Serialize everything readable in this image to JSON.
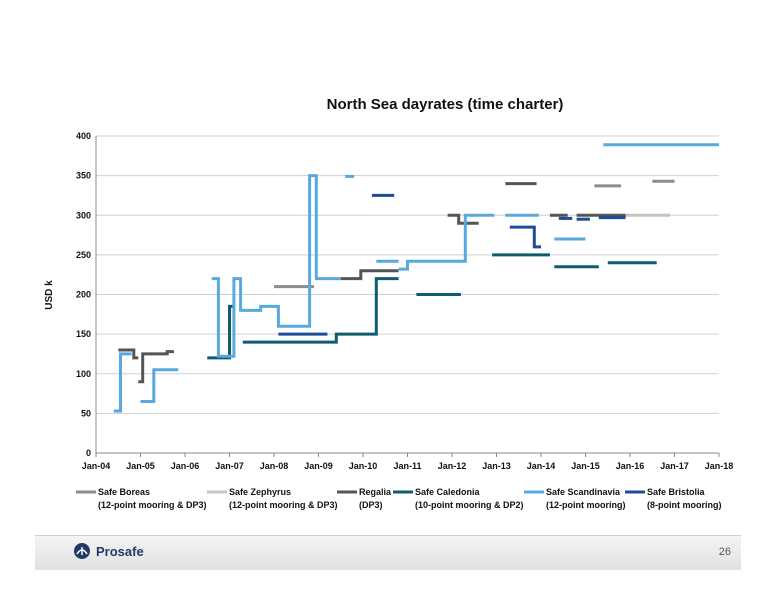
{
  "chart_data": {
    "type": "line",
    "title": "North Sea dayrates (time charter)",
    "ylabel": "USD k",
    "xlabel": "",
    "ylim": [
      0,
      400
    ],
    "yticks": [
      0,
      50,
      100,
      150,
      200,
      250,
      300,
      350,
      400
    ],
    "xlim": [
      2004.0,
      2018.0
    ],
    "xticks": [
      {
        "label": "Jan-04",
        "value": 2004
      },
      {
        "label": "Jan-05",
        "value": 2005
      },
      {
        "label": "Jan-06",
        "value": 2006
      },
      {
        "label": "Jan-07",
        "value": 2007
      },
      {
        "label": "Jan-08",
        "value": 2008
      },
      {
        "label": "Jan-09",
        "value": 2009
      },
      {
        "label": "Jan-10",
        "value": 2010
      },
      {
        "label": "Jan-11",
        "value": 2011
      },
      {
        "label": "Jan-12",
        "value": 2012
      },
      {
        "label": "Jan-13",
        "value": 2013
      },
      {
        "label": "Jan-14",
        "value": 2014
      },
      {
        "label": "Jan-15",
        "value": 2015
      },
      {
        "label": "Jan-16",
        "value": 2016
      },
      {
        "label": "Jan-17",
        "value": 2017
      },
      {
        "label": "Jan-18",
        "value": 2018
      }
    ],
    "grid": "horizontal",
    "legend_position": "bottom",
    "series": [
      {
        "name": "Safe Boreas",
        "note": "(12-point mooring & DP3)",
        "color": "#8c8c8c",
        "segments": [
          [
            [
              2008.0,
              210
            ],
            [
              2008.9,
              210
            ]
          ],
          [
            [
              2015.2,
              337
            ],
            [
              2015.8,
              337
            ]
          ],
          [
            [
              2016.5,
              343
            ],
            [
              2017.0,
              343
            ]
          ]
        ]
      },
      {
        "name": "Safe Zephyrus",
        "note": "(12-point mooring & DP3)",
        "color": "#c4c4c4",
        "segments": [
          [
            [
              2015.9,
              300
            ],
            [
              2016.9,
              300
            ]
          ]
        ]
      },
      {
        "name": "Regalia",
        "note": "(DP3)",
        "color": "#555555",
        "segments": [
          [
            [
              2004.5,
              130
            ],
            [
              2004.85,
              130
            ],
            [
              2004.85,
              120
            ],
            [
              2004.95,
              120
            ]
          ],
          [
            [
              2004.95,
              90
            ],
            [
              2005.05,
              90
            ],
            [
              2005.05,
              125
            ],
            [
              2005.6,
              125
            ],
            [
              2005.6,
              128
            ],
            [
              2005.75,
              128
            ]
          ],
          [
            [
              2009.5,
              220
            ],
            [
              2009.95,
              220
            ],
            [
              2009.95,
              230
            ],
            [
              2010.8,
              230
            ]
          ],
          [
            [
              2011.9,
              300
            ],
            [
              2012.15,
              300
            ],
            [
              2012.15,
              290
            ],
            [
              2012.6,
              290
            ]
          ],
          [
            [
              2013.2,
              340
            ],
            [
              2013.9,
              340
            ]
          ],
          [
            [
              2014.2,
              300
            ],
            [
              2014.6,
              300
            ]
          ],
          [
            [
              2014.8,
              300
            ],
            [
              2015.9,
              300
            ]
          ]
        ]
      },
      {
        "name": "Safe Caledonia",
        "note": "(10-point mooring & DP2)",
        "color": "#0f5c6e",
        "segments": [
          [
            [
              2006.5,
              120
            ],
            [
              2007.0,
              120
            ],
            [
              2007.0,
              185
            ],
            [
              2007.1,
              185
            ]
          ],
          [
            [
              2007.3,
              140
            ],
            [
              2009.4,
              140
            ],
            [
              2009.4,
              150
            ],
            [
              2010.3,
              150
            ],
            [
              2010.3,
              220
            ],
            [
              2010.8,
              220
            ]
          ],
          [
            [
              2011.2,
              200
            ],
            [
              2012.2,
              200
            ]
          ],
          [
            [
              2012.9,
              250
            ],
            [
              2014.2,
              250
            ]
          ],
          [
            [
              2014.3,
              235
            ],
            [
              2015.3,
              235
            ]
          ],
          [
            [
              2015.5,
              240
            ],
            [
              2016.6,
              240
            ]
          ]
        ]
      },
      {
        "name": "Safe Scandinavia",
        "note": "(12-point mooring)",
        "color": "#5aa9de",
        "segments": [
          [
            [
              2004.4,
              53
            ],
            [
              2004.55,
              53
            ],
            [
              2004.55,
              125
            ],
            [
              2004.8,
              125
            ]
          ],
          [
            [
              2005.0,
              65
            ],
            [
              2005.3,
              65
            ],
            [
              2005.3,
              105
            ],
            [
              2005.85,
              105
            ]
          ],
          [
            [
              2006.6,
              220
            ],
            [
              2006.75,
              220
            ],
            [
              2006.75,
              122
            ],
            [
              2007.1,
              122
            ],
            [
              2007.1,
              220
            ],
            [
              2007.25,
              220
            ],
            [
              2007.25,
              180
            ],
            [
              2007.7,
              180
            ],
            [
              2007.7,
              185
            ],
            [
              2008.1,
              185
            ],
            [
              2008.1,
              160
            ],
            [
              2008.8,
              160
            ],
            [
              2008.8,
              350
            ],
            [
              2008.95,
              350
            ],
            [
              2008.95,
              220
            ],
            [
              2009.5,
              220
            ]
          ],
          [
            [
              2009.6,
              349
            ],
            [
              2009.8,
              349
            ]
          ],
          [
            [
              2010.3,
              242
            ],
            [
              2010.8,
              242
            ]
          ],
          [
            [
              2010.8,
              232
            ],
            [
              2011.0,
              232
            ],
            [
              2011.0,
              242
            ],
            [
              2012.3,
              242
            ],
            [
              2012.3,
              300
            ],
            [
              2012.95,
              300
            ]
          ],
          [
            [
              2013.2,
              300
            ],
            [
              2013.95,
              300
            ]
          ],
          [
            [
              2014.3,
              270
            ],
            [
              2015.0,
              270
            ]
          ],
          [
            [
              2015.4,
              389
            ],
            [
              2018.0,
              389
            ]
          ]
        ]
      },
      {
        "name": "Safe Bristolia",
        "note": "(8-point mooring)",
        "color": "#1c4c9a",
        "segments": [
          [
            [
              2008.1,
              150
            ],
            [
              2009.2,
              150
            ]
          ],
          [
            [
              2010.2,
              325
            ],
            [
              2010.7,
              325
            ]
          ],
          [
            [
              2013.3,
              285
            ],
            [
              2013.85,
              285
            ],
            [
              2013.85,
              260
            ],
            [
              2014.0,
              260
            ]
          ],
          [
            [
              2014.4,
              296
            ],
            [
              2014.7,
              296
            ]
          ],
          [
            [
              2014.8,
              295
            ],
            [
              2015.1,
              295
            ]
          ],
          [
            [
              2015.3,
              297
            ],
            [
              2015.9,
              297
            ]
          ]
        ]
      }
    ]
  },
  "footer": {
    "logo_text": "Prosafe",
    "page_number": "26"
  }
}
